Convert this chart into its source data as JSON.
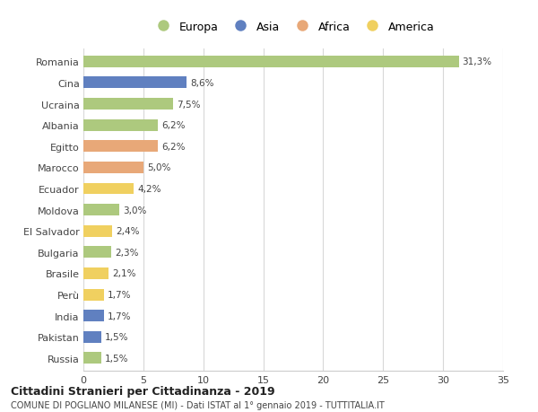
{
  "countries": [
    "Romania",
    "Cina",
    "Ucraina",
    "Albania",
    "Egitto",
    "Marocco",
    "Ecuador",
    "Moldova",
    "El Salvador",
    "Bulgaria",
    "Brasile",
    "Perù",
    "India",
    "Pakistan",
    "Russia"
  ],
  "values": [
    31.3,
    8.6,
    7.5,
    6.2,
    6.2,
    5.0,
    4.2,
    3.0,
    2.4,
    2.3,
    2.1,
    1.7,
    1.7,
    1.5,
    1.5
  ],
  "labels": [
    "31,3%",
    "8,6%",
    "7,5%",
    "6,2%",
    "6,2%",
    "5,0%",
    "4,2%",
    "3,0%",
    "2,4%",
    "2,3%",
    "2,1%",
    "1,7%",
    "1,7%",
    "1,5%",
    "1,5%"
  ],
  "continents": [
    "Europa",
    "Asia",
    "Europa",
    "Europa",
    "Africa",
    "Africa",
    "America",
    "Europa",
    "America",
    "Europa",
    "America",
    "America",
    "Asia",
    "Asia",
    "Europa"
  ],
  "colors": {
    "Europa": "#adc97e",
    "Asia": "#6080c0",
    "Africa": "#e8a878",
    "America": "#f0d060"
  },
  "legend_order": [
    "Europa",
    "Asia",
    "Africa",
    "America"
  ],
  "xlim": [
    0,
    35
  ],
  "xticks": [
    0,
    5,
    10,
    15,
    20,
    25,
    30,
    35
  ],
  "title": "Cittadini Stranieri per Cittadinanza - 2019",
  "subtitle": "COMUNE DI POGLIANO MILANESE (MI) - Dati ISTAT al 1° gennaio 2019 - TUTTITALIA.IT",
  "background_color": "#ffffff",
  "bar_height": 0.55,
  "grid_color": "#d8d8d8"
}
